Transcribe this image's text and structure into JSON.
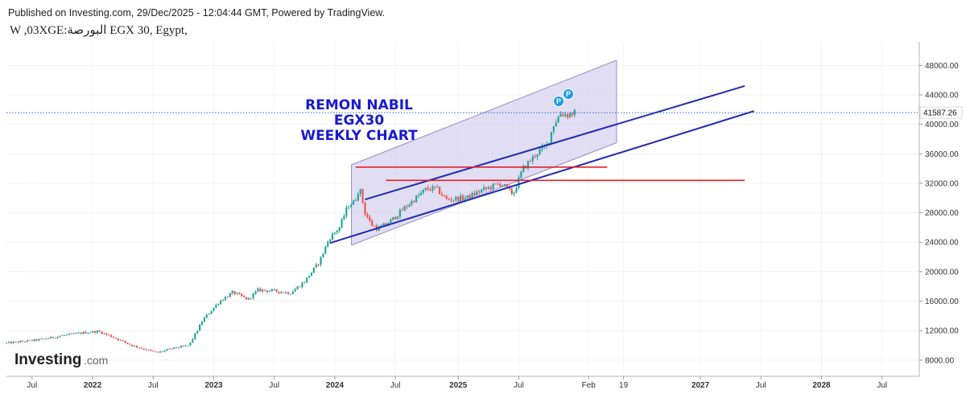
{
  "header": {
    "published": "Published on Investing.com, 29/Dec/2025 - 12:04:44 GMT, Powered by TradingView.",
    "symbol_line": "W ,03XGE:ﺍﻟﺒﻮﺭﺻﺔ EGX 30, Egypt,"
  },
  "logo": {
    "word": "Investing",
    "suffix": ".com"
  },
  "annotation": {
    "lines": [
      "REMON NABIL",
      "EGX30",
      "WEEKLY CHART"
    ]
  },
  "badges": [
    "P",
    "P"
  ],
  "colors": {
    "up": "#26a69a",
    "down": "#ef5350",
    "channel_fill": "#d7d1ee",
    "channel_edge": "#9b8bc9",
    "trend_line": "#1f2bb0",
    "support_line": "#e0212b",
    "price_line": "#2b5fd9",
    "badge": "#1e9be9"
  },
  "chart_data": {
    "type": "candlestick",
    "title": "",
    "interval": "weekly",
    "xlim": [
      "2021-04-19",
      "2028-10-23"
    ],
    "ylim": [
      5800,
      51200
    ],
    "y_ticks": [
      8000,
      12000,
      16000,
      20000,
      24000,
      28000,
      32000,
      36000,
      40000,
      44000,
      48000
    ],
    "y_tick_labels": [
      "8000.00",
      "12000.00",
      "16000.00",
      "20000.00",
      "24000.00",
      "28000.00",
      "32000.00",
      "36000.00",
      "40000.00",
      "44000.00",
      "48000.00"
    ],
    "x_ticks": [
      {
        "date": "2021-07-05",
        "label": "Jul",
        "bold": false
      },
      {
        "date": "2022-01-03",
        "label": "2022",
        "bold": true
      },
      {
        "date": "2022-07-04",
        "label": "Jul",
        "bold": false
      },
      {
        "date": "2023-01-02",
        "label": "2023",
        "bold": true
      },
      {
        "date": "2023-07-03",
        "label": "Jul",
        "bold": false
      },
      {
        "date": "2024-01-01",
        "label": "2024",
        "bold": true
      },
      {
        "date": "2024-07-01",
        "label": "Jul",
        "bold": false
      },
      {
        "date": "2025-01-06",
        "label": "2025",
        "bold": true
      },
      {
        "date": "2025-07-07",
        "label": "Jul",
        "bold": false
      },
      {
        "date": "2026-02-02",
        "label": "Feb",
        "bold": false
      },
      {
        "date": "2026-05-18",
        "label": "19",
        "bold": false
      },
      {
        "date": "2027-01-04",
        "label": "2027",
        "bold": true
      },
      {
        "date": "2027-07-05",
        "label": "Jul",
        "bold": false
      },
      {
        "date": "2028-01-03",
        "label": "2028",
        "bold": true
      },
      {
        "date": "2028-07-03",
        "label": "Jul",
        "bold": false
      }
    ],
    "last_price": 41587.26,
    "last_price_label": "41587.26",
    "close_path": [
      [
        "2021-04-19",
        10300
      ],
      [
        "2021-06-01",
        10500
      ],
      [
        "2021-08-01",
        10800
      ],
      [
        "2021-10-01",
        11300
      ],
      [
        "2021-12-01",
        11700
      ],
      [
        "2022-01-20",
        11900
      ],
      [
        "2022-03-01",
        11200
      ],
      [
        "2022-05-01",
        10000
      ],
      [
        "2022-07-15",
        9000
      ],
      [
        "2022-09-01",
        9600
      ],
      [
        "2022-10-20",
        10000
      ],
      [
        "2022-12-01",
        13500
      ],
      [
        "2023-01-20",
        16000
      ],
      [
        "2023-03-01",
        17200
      ],
      [
        "2023-04-15",
        16200
      ],
      [
        "2023-05-15",
        17500
      ],
      [
        "2023-07-01",
        17400
      ],
      [
        "2023-08-20",
        17100
      ],
      [
        "2023-10-01",
        18600
      ],
      [
        "2023-11-15",
        21300
      ],
      [
        "2023-12-15",
        24500
      ],
      [
        "2024-01-15",
        26000
      ],
      [
        "2024-02-10",
        29000
      ],
      [
        "2024-03-01",
        29500
      ],
      [
        "2024-03-15",
        31500
      ],
      [
        "2024-04-01",
        28000
      ],
      [
        "2024-04-20",
        26400
      ],
      [
        "2024-05-10",
        25800
      ],
      [
        "2024-06-15",
        26800
      ],
      [
        "2024-08-01",
        28800
      ],
      [
        "2024-10-01",
        31200
      ],
      [
        "2024-11-01",
        31300
      ],
      [
        "2024-12-01",
        29800
      ],
      [
        "2025-02-01",
        30000
      ],
      [
        "2025-03-15",
        31000
      ],
      [
        "2025-05-15",
        32000
      ],
      [
        "2025-06-20",
        30500
      ],
      [
        "2025-07-20",
        34000
      ],
      [
        "2025-08-15",
        35300
      ],
      [
        "2025-09-01",
        36200
      ],
      [
        "2025-10-01",
        37200
      ],
      [
        "2025-10-20",
        40000
      ],
      [
        "2025-11-10",
        41500
      ],
      [
        "2025-12-01",
        41300
      ],
      [
        "2025-12-22",
        41587
      ]
    ],
    "channel": {
      "upper": [
        [
          "2024-02-20",
          34500
        ],
        [
          "2026-04-27",
          48700
        ]
      ],
      "lower": [
        [
          "2024-02-20",
          23600
        ],
        [
          "2026-04-27",
          37500
        ]
      ]
    },
    "trend_lines": [
      [
        [
          "2024-04-01",
          29800
        ],
        [
          "2027-05-17",
          45200
        ]
      ],
      [
        [
          "2023-12-18",
          23900
        ],
        [
          "2027-06-14",
          41800
        ]
      ]
    ],
    "support_lines": [
      [
        [
          "2024-03-04",
          34200
        ],
        [
          "2026-03-30",
          34200
        ]
      ],
      [
        [
          "2024-06-03",
          32400
        ],
        [
          "2027-05-17",
          32400
        ]
      ]
    ]
  }
}
